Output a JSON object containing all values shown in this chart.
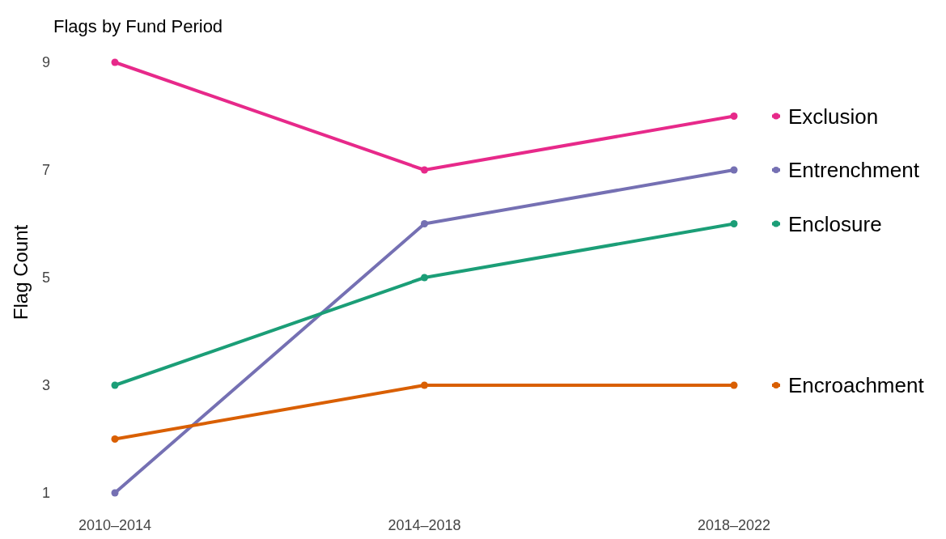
{
  "chart_data": {
    "type": "line",
    "title": "Flags by Fund Period",
    "ylabel": "Flag Count",
    "categories": [
      "2010–2014",
      "2014–2018",
      "2018–2022"
    ],
    "series": [
      {
        "name": "Exclusion",
        "color": "#e7298a",
        "values": [
          9,
          7,
          8
        ]
      },
      {
        "name": "Entrenchment",
        "color": "#7570b3",
        "values": [
          1,
          6,
          7
        ]
      },
      {
        "name": "Enclosure",
        "color": "#1b9e77",
        "values": [
          3,
          5,
          6
        ]
      },
      {
        "name": "Encroachment",
        "color": "#d95f02",
        "values": [
          2,
          3,
          3
        ]
      }
    ],
    "ylim": [
      1,
      9
    ],
    "yticks": [
      1,
      3,
      5,
      7,
      9
    ],
    "legend": "right",
    "marker": "circle",
    "line_style": "solid"
  }
}
